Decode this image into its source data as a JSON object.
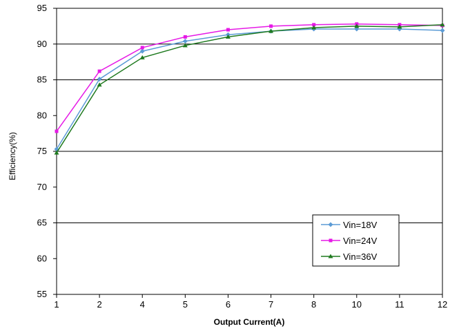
{
  "chart_data": {
    "type": "line",
    "title": "",
    "xlabel": "Output Current(A)",
    "ylabel": "Efficiency(%)",
    "ylim": [
      55,
      95
    ],
    "yticks": [
      "55",
      "60",
      "65",
      "70",
      "75",
      "80",
      "85",
      "90",
      "95"
    ],
    "categories": [
      "1",
      "2",
      "4",
      "5",
      "6",
      "7",
      "8",
      "10",
      "11",
      "12"
    ],
    "grid": "horizontal major lines at 65, 75, 85, 90",
    "legend_position": "bottom-right",
    "series": [
      {
        "name": "Vin=18V",
        "color": "#5B9BD5",
        "marker": "diamond",
        "values": [
          75.3,
          85.1,
          89.0,
          90.4,
          91.3,
          91.8,
          92.1,
          92.1,
          92.1,
          91.9
        ]
      },
      {
        "name": "Vin=24V",
        "color": "#E619E6",
        "marker": "square",
        "values": [
          77.8,
          86.2,
          89.5,
          91.0,
          92.0,
          92.5,
          92.7,
          92.8,
          92.7,
          92.6
        ]
      },
      {
        "name": "Vin=36V",
        "color": "#1F7A1F",
        "marker": "triangle",
        "values": [
          74.8,
          84.3,
          88.1,
          89.8,
          91.0,
          91.8,
          92.3,
          92.5,
          92.4,
          92.7
        ]
      }
    ]
  }
}
